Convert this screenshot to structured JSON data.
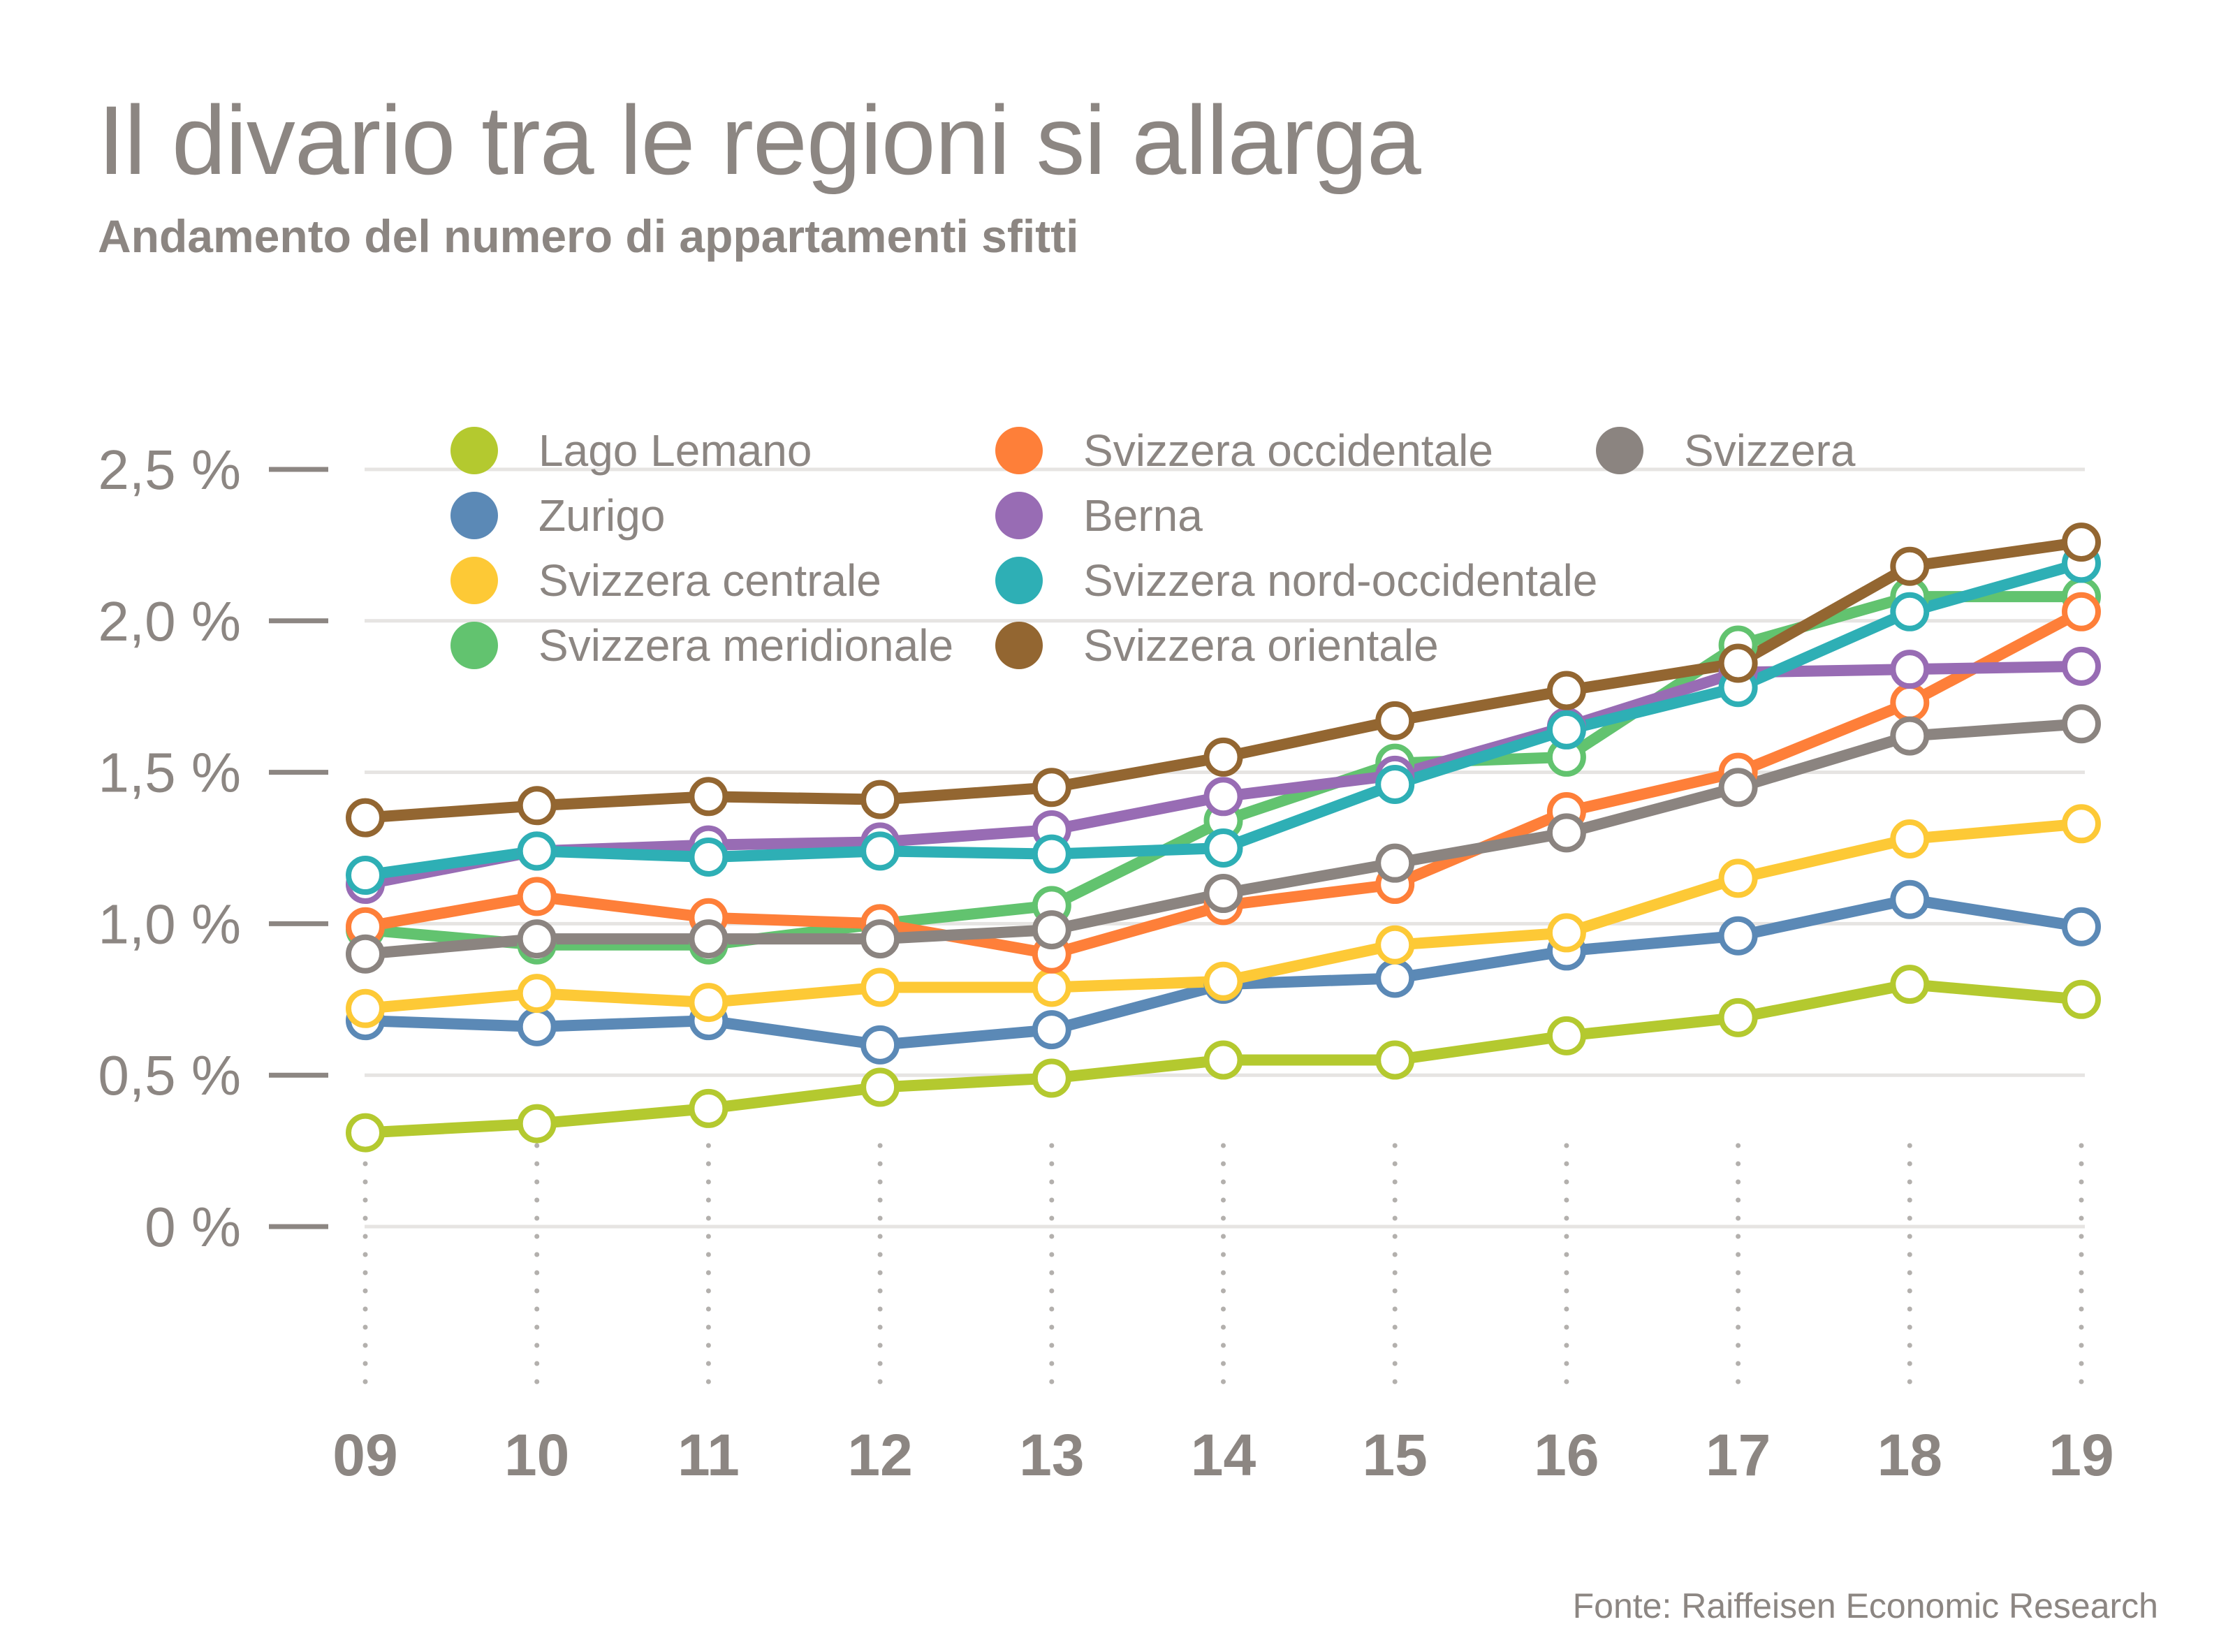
{
  "title": "Il divario tra le regioni si allarga",
  "subtitle": "Andamento del numero di appartamenti sfitti",
  "source": "Fonte: Raiffeisen Economic Research",
  "chart_data": {
    "type": "line",
    "title": "Il divario tra le regioni si allarga",
    "subtitle": "Andamento del numero di appartamenti sfitti",
    "xlabel": "",
    "ylabel": "",
    "x": [
      "09",
      "10",
      "11",
      "12",
      "13",
      "14",
      "15",
      "16",
      "17",
      "18",
      "19"
    ],
    "ylim": [
      0,
      2.5
    ],
    "yticks": [
      0,
      0.5,
      1.0,
      1.5,
      2.0,
      2.5
    ],
    "ytick_labels": [
      "0 %",
      "0,5 %",
      "1,0 %",
      "1,5 %",
      "2,0 %",
      "2,5 %"
    ],
    "grid": true,
    "legend_position": "top",
    "series": [
      {
        "name": "Lago Lemano",
        "color": "#b4c92f",
        "values": [
          0.31,
          0.34,
          0.39,
          0.46,
          0.49,
          0.55,
          0.55,
          0.63,
          0.69,
          0.8,
          0.75
        ]
      },
      {
        "name": "Zurigo",
        "color": "#5b89b6",
        "values": [
          0.68,
          0.66,
          0.68,
          0.6,
          0.65,
          0.8,
          0.82,
          0.91,
          0.96,
          1.08,
          0.99
        ]
      },
      {
        "name": "Svizzera centrale",
        "color": "#fdc936",
        "values": [
          0.72,
          0.77,
          0.74,
          0.79,
          0.79,
          0.81,
          0.93,
          0.97,
          1.15,
          1.28,
          1.33
        ]
      },
      {
        "name": "Svizzera meridionale",
        "color": "#62c36f",
        "values": [
          0.98,
          0.93,
          0.93,
          1.0,
          1.06,
          1.34,
          1.53,
          1.55,
          1.92,
          2.08,
          2.08
        ]
      },
      {
        "name": "Svizzera occidentale",
        "color": "#fe7f39",
        "values": [
          0.99,
          1.09,
          1.02,
          1.0,
          0.9,
          1.06,
          1.13,
          1.37,
          1.5,
          1.73,
          2.03
        ]
      },
      {
        "name": "Berna",
        "color": "#986cb4",
        "values": [
          1.13,
          1.24,
          1.26,
          1.27,
          1.31,
          1.42,
          1.49,
          1.65,
          1.83,
          1.84,
          1.85
        ]
      },
      {
        "name": "Svizzera nord-occidentale",
        "color": "#2eafb5",
        "values": [
          1.16,
          1.24,
          1.22,
          1.24,
          1.23,
          1.25,
          1.46,
          1.64,
          1.78,
          2.03,
          2.19
        ]
      },
      {
        "name": "Svizzera orientale",
        "color": "#936631",
        "values": [
          1.35,
          1.39,
          1.42,
          1.41,
          1.45,
          1.55,
          1.67,
          1.77,
          1.86,
          2.18,
          2.26
        ]
      },
      {
        "name": "Svizzera",
        "color": "#8b8480",
        "values": [
          0.9,
          0.95,
          0.95,
          0.95,
          0.98,
          1.1,
          1.2,
          1.3,
          1.45,
          1.62,
          1.66
        ]
      }
    ]
  }
}
